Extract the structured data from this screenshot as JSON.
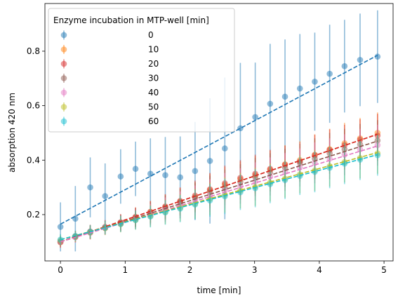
{
  "chart_data": {
    "type": "scatter",
    "title": "",
    "xlabel": "time [min]",
    "ylabel": "absorption 420 nm",
    "xlim": [
      -0.24,
      5.14
    ],
    "ylim": [
      0.03,
      0.975
    ],
    "xticks": [
      0,
      1,
      2,
      3,
      4,
      5
    ],
    "yticks": [
      0.2,
      0.4,
      0.6,
      0.8
    ],
    "xtick_labels": [
      "0",
      "1",
      "2",
      "3",
      "4",
      "5"
    ],
    "ytick_labels": [
      "0.2",
      "0.4",
      "0.6",
      "0.8"
    ],
    "grid": false,
    "legend": {
      "title": "Enzyme incubation in MTP-well [min]",
      "placement": "top-left"
    },
    "x": [
      0.0,
      0.23,
      0.46,
      0.69,
      0.93,
      1.16,
      1.39,
      1.62,
      1.85,
      2.08,
      2.31,
      2.54,
      2.78,
      3.01,
      3.24,
      3.47,
      3.7,
      3.93,
      4.16,
      4.39,
      4.63,
      4.9
    ],
    "series": [
      {
        "name": "0",
        "color": "#1f77b4",
        "values": [
          0.155,
          0.185,
          0.3,
          0.268,
          0.34,
          0.368,
          0.35,
          0.345,
          0.337,
          0.36,
          0.397,
          0.443,
          0.517,
          0.558,
          0.607,
          0.633,
          0.663,
          0.688,
          0.717,
          0.745,
          0.768,
          0.78
        ],
        "errors": [
          0.09,
          0.12,
          0.11,
          0.12,
          0.1,
          0.1,
          0.13,
          0.14,
          0.15,
          0.18,
          0.23,
          0.26,
          0.24,
          0.2,
          0.22,
          0.21,
          0.2,
          0.18,
          0.18,
          0.17,
          0.17,
          0.17
        ],
        "fit": [
          0.165,
          0.785
        ]
      },
      {
        "name": "10",
        "color": "#ff7f0e",
        "values": [
          0.098,
          0.118,
          0.135,
          0.152,
          0.17,
          0.19,
          0.21,
          0.228,
          0.248,
          0.265,
          0.29,
          0.31,
          0.33,
          0.345,
          0.365,
          0.385,
          0.4,
          0.42,
          0.44,
          0.462,
          0.48,
          0.5
        ],
        "errors": [
          0.02,
          0.02,
          0.025,
          0.025,
          0.03,
          0.035,
          0.04,
          0.045,
          0.05,
          0.055,
          0.06,
          0.065,
          0.065,
          0.07,
          0.07,
          0.07,
          0.07,
          0.075,
          0.075,
          0.075,
          0.075,
          0.075
        ],
        "fit": [
          0.1,
          0.495
        ]
      },
      {
        "name": "20",
        "color": "#d62728",
        "values": [
          0.1,
          0.12,
          0.138,
          0.155,
          0.172,
          0.192,
          0.21,
          0.23,
          0.25,
          0.27,
          0.293,
          0.315,
          0.335,
          0.35,
          0.368,
          0.383,
          0.395,
          0.418,
          0.438,
          0.455,
          0.475,
          0.49
        ],
        "errors": [
          0.02,
          0.02,
          0.025,
          0.025,
          0.03,
          0.035,
          0.04,
          0.045,
          0.05,
          0.055,
          0.06,
          0.065,
          0.065,
          0.07,
          0.07,
          0.07,
          0.07,
          0.075,
          0.075,
          0.075,
          0.075,
          0.08
        ],
        "fit": [
          0.1,
          0.495
        ]
      },
      {
        "name": "30",
        "color": "#8c564b",
        "values": [
          0.1,
          0.118,
          0.135,
          0.152,
          0.17,
          0.188,
          0.205,
          0.225,
          0.245,
          0.262,
          0.283,
          0.3,
          0.32,
          0.338,
          0.355,
          0.372,
          0.39,
          0.405,
          0.425,
          0.44,
          0.458,
          0.472
        ],
        "errors": [
          0.02,
          0.02,
          0.025,
          0.025,
          0.03,
          0.035,
          0.04,
          0.045,
          0.05,
          0.055,
          0.06,
          0.065,
          0.065,
          0.07,
          0.07,
          0.07,
          0.07,
          0.075,
          0.075,
          0.075,
          0.075,
          0.075
        ],
        "fit": [
          0.1,
          0.47
        ]
      },
      {
        "name": "40",
        "color": "#e377c2",
        "values": [
          0.1,
          0.117,
          0.133,
          0.15,
          0.167,
          0.184,
          0.2,
          0.218,
          0.235,
          0.252,
          0.27,
          0.288,
          0.305,
          0.322,
          0.34,
          0.357,
          0.373,
          0.39,
          0.405,
          0.42,
          0.44,
          0.455
        ],
        "errors": [
          0.02,
          0.02,
          0.025,
          0.025,
          0.03,
          0.035,
          0.04,
          0.045,
          0.05,
          0.055,
          0.06,
          0.065,
          0.065,
          0.07,
          0.07,
          0.07,
          0.07,
          0.075,
          0.075,
          0.075,
          0.075,
          0.075
        ],
        "fit": [
          0.1,
          0.452
        ]
      },
      {
        "name": "50",
        "color": "#bcbd22",
        "values": [
          0.105,
          0.12,
          0.135,
          0.15,
          0.165,
          0.18,
          0.195,
          0.21,
          0.225,
          0.24,
          0.258,
          0.272,
          0.288,
          0.302,
          0.318,
          0.332,
          0.348,
          0.362,
          0.378,
          0.393,
          0.408,
          0.425
        ],
        "errors": [
          0.02,
          0.02,
          0.025,
          0.025,
          0.03,
          0.035,
          0.04,
          0.045,
          0.05,
          0.055,
          0.06,
          0.065,
          0.065,
          0.07,
          0.07,
          0.07,
          0.07,
          0.075,
          0.075,
          0.075,
          0.075,
          0.075
        ],
        "fit": [
          0.108,
          0.428
        ]
      },
      {
        "name": "60",
        "color": "#17becf",
        "values": [
          0.108,
          0.122,
          0.137,
          0.152,
          0.166,
          0.18,
          0.193,
          0.208,
          0.222,
          0.237,
          0.252,
          0.267,
          0.282,
          0.297,
          0.312,
          0.327,
          0.342,
          0.357,
          0.372,
          0.387,
          0.402,
          0.418
        ],
        "errors": [
          0.02,
          0.02,
          0.025,
          0.025,
          0.03,
          0.035,
          0.04,
          0.045,
          0.05,
          0.055,
          0.06,
          0.065,
          0.065,
          0.07,
          0.07,
          0.07,
          0.07,
          0.075,
          0.075,
          0.075,
          0.075,
          0.075
        ],
        "fit": [
          0.108,
          0.42
        ]
      }
    ]
  }
}
